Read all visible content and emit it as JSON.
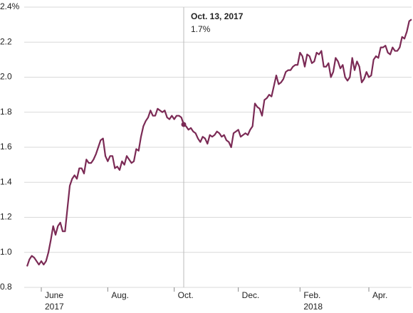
{
  "chart_data": {
    "type": "line",
    "categories": [
      null,
      null,
      null,
      null,
      null,
      null,
      "June",
      null,
      null,
      null,
      null,
      null,
      null,
      null,
      null,
      null,
      null,
      null,
      null,
      null,
      null,
      null,
      null,
      null,
      null,
      null,
      null,
      null,
      null,
      null,
      null,
      null,
      null,
      null,
      "Aug.",
      null,
      null,
      null,
      null,
      null,
      null,
      null,
      null,
      null,
      null,
      null,
      null,
      null,
      null,
      null,
      null,
      null,
      null,
      null,
      null,
      null,
      null,
      null,
      null,
      null,
      null,
      null,
      "Oct.",
      null,
      null,
      null,
      "Oct. 13, 2017",
      null,
      null,
      null,
      null,
      null,
      null,
      null,
      null,
      null,
      null,
      null,
      null,
      null,
      null,
      null,
      null,
      null,
      null,
      null,
      null,
      null,
      null,
      "Dec.",
      null,
      null,
      null,
      null,
      null,
      null,
      null,
      null,
      null,
      null,
      null,
      null,
      null,
      null,
      null,
      null,
      null,
      null,
      null,
      null,
      null,
      null,
      null,
      null,
      null,
      "Feb.",
      null,
      null,
      null,
      null,
      null,
      null,
      null,
      null,
      null,
      null,
      null,
      null,
      null,
      null,
      null,
      null,
      null,
      null,
      null,
      null,
      null,
      null,
      null,
      null,
      null,
      null,
      null,
      null,
      "Apr.",
      null,
      null,
      null,
      null,
      null,
      null,
      null,
      null,
      null,
      null,
      null,
      null,
      null,
      null,
      null,
      null,
      null,
      null
    ],
    "year_labels": [
      "2017",
      "2018"
    ],
    "series": [
      {
        "color": "#7b2a55",
        "values": [
          0.92,
          0.96,
          0.98,
          0.97,
          0.95,
          0.93,
          0.95,
          0.93,
          0.95,
          1.0,
          1.07,
          1.15,
          1.1,
          1.15,
          1.17,
          1.12,
          1.12,
          1.25,
          1.38,
          1.42,
          1.44,
          1.42,
          1.48,
          1.48,
          1.45,
          1.53,
          1.51,
          1.51,
          1.53,
          1.56,
          1.6,
          1.64,
          1.65,
          1.55,
          1.52,
          1.55,
          1.55,
          1.48,
          1.49,
          1.47,
          1.52,
          1.5,
          1.55,
          1.53,
          1.51,
          1.52,
          1.59,
          1.58,
          1.66,
          1.72,
          1.75,
          1.77,
          1.81,
          1.78,
          1.78,
          1.82,
          1.81,
          1.8,
          1.81,
          1.77,
          1.76,
          1.78,
          1.76,
          1.78,
          1.78,
          1.77,
          1.73,
          1.72,
          1.7,
          1.71,
          1.69,
          1.68,
          1.65,
          1.63,
          1.66,
          1.65,
          1.62,
          1.67,
          1.66,
          1.67,
          1.69,
          1.68,
          1.66,
          1.67,
          1.64,
          1.63,
          1.6,
          1.68,
          1.69,
          1.7,
          1.66,
          1.67,
          1.68,
          1.67,
          1.7,
          1.72,
          1.85,
          1.83,
          1.82,
          1.78,
          1.87,
          1.88,
          1.9,
          1.89,
          1.95,
          2.01,
          1.96,
          1.97,
          1.99,
          2.03,
          2.04,
          2.04,
          2.06,
          2.07,
          2.07,
          2.14,
          2.12,
          2.06,
          2.13,
          2.12,
          2.08,
          2.09,
          2.14,
          2.13,
          2.15,
          2.06,
          2.06,
          2.08,
          2.0,
          2.03,
          2.11,
          2.09,
          2.05,
          2.07,
          2.0,
          1.98,
          2.0,
          2.11,
          2.04,
          2.09,
          2.06,
          1.97,
          1.99,
          2.03,
          2.0,
          2.01,
          2.1,
          2.12,
          2.11,
          2.17,
          2.17,
          2.18,
          2.14,
          2.13,
          2.17,
          2.15,
          2.15,
          2.17,
          2.23,
          2.22,
          2.26,
          2.32,
          2.33
        ]
      }
    ],
    "annotation": {
      "value_label": "1.7%"
    },
    "ylim": [
      0.8,
      2.4
    ],
    "yticks": [
      0.8,
      {
        "value": 1.0,
        "label": "1.0"
      },
      1.2,
      1.4,
      1.6,
      1.8,
      {
        "value": 2.0,
        "label": "2.0"
      },
      2.2,
      {
        "value": 2.4,
        "label": "2.4%"
      }
    ],
    "grid": true
  }
}
